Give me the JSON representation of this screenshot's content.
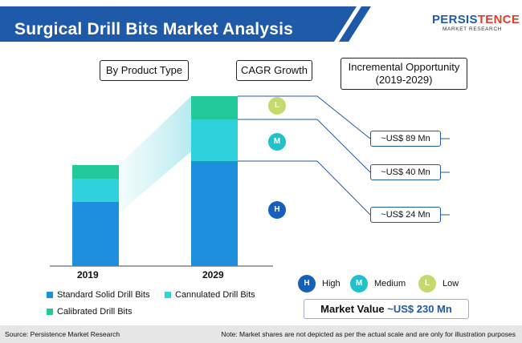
{
  "title": "Surgical Drill Bits Market Analysis",
  "logo": {
    "main_part1": "PERSIS",
    "main_part2": "TENCE",
    "sub": "MARKET RESEARCH"
  },
  "headers": {
    "product_type": "By Product Type",
    "cagr": "CAGR Growth",
    "opportunity_line1": "Incremental Opportunity",
    "opportunity_line2": "(2019-2029)"
  },
  "chart_data": {
    "type": "bar",
    "stacked": true,
    "categories": [
      "2019",
      "2029"
    ],
    "series": [
      {
        "name": "Standard Solid Drill Bits",
        "values": [
          80,
          131
        ],
        "color": "#1d8fdc"
      },
      {
        "name": "Cannulated Drill Bits",
        "values": [
          29,
          52
        ],
        "color": "#2fd1dd"
      },
      {
        "name": "Calibrated Drill Bits",
        "values": [
          17,
          29
        ],
        "color": "#22c99a"
      }
    ]
  },
  "cagr": {
    "markers": [
      "L",
      "M",
      "H"
    ],
    "marker_colors": [
      "#c2db6c",
      "#1fc2c8",
      "#1560b8"
    ]
  },
  "opportunities": [
    "~US$ 89 Mn",
    "~US$ 40 Mn",
    "~US$ 24 Mn"
  ],
  "cagr_legend": [
    {
      "letter": "H",
      "label": "High"
    },
    {
      "letter": "M",
      "label": "Medium"
    },
    {
      "letter": "L",
      "label": "Low"
    }
  ],
  "market_value": {
    "label": "Market Value",
    "value": "~US$ 230 Mn"
  },
  "footer": {
    "source": "Source: Persistence Market Research",
    "note": "Note: Market shares are not depicted as per the actual scale and are only for illustration purposes"
  }
}
